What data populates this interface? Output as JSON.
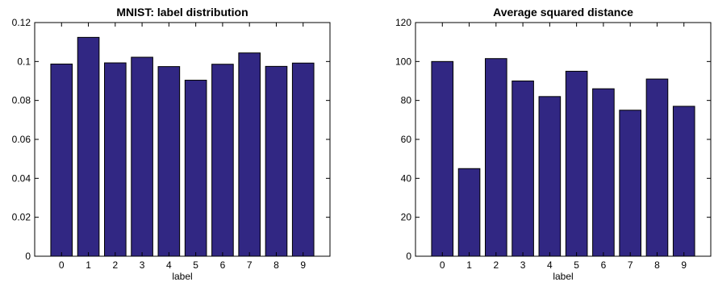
{
  "chart_data": [
    {
      "type": "bar",
      "title": "MNIST: label distribution",
      "xlabel": "label",
      "ylabel": "",
      "categories": [
        "0",
        "1",
        "2",
        "3",
        "4",
        "5",
        "6",
        "7",
        "8",
        "9"
      ],
      "values": [
        0.0987,
        0.1124,
        0.0993,
        0.1022,
        0.0974,
        0.0904,
        0.0986,
        0.1044,
        0.0975,
        0.0992
      ],
      "ylim": [
        0,
        0.12
      ],
      "yticks": [
        0,
        0.02,
        0.04,
        0.06,
        0.08,
        0.1,
        0.12
      ],
      "ytick_labels": [
        "0",
        "0.02",
        "0.04",
        "0.06",
        "0.08",
        "0.1",
        "0.12"
      ],
      "bar_color": "#312783",
      "grid": false
    },
    {
      "type": "bar",
      "title": "Average squared distance",
      "xlabel": "label",
      "ylabel": "",
      "categories": [
        "0",
        "1",
        "2",
        "3",
        "4",
        "5",
        "6",
        "7",
        "8",
        "9"
      ],
      "values": [
        100,
        45,
        101.5,
        90,
        82,
        95,
        86,
        75,
        91,
        77
      ],
      "ylim": [
        0,
        120
      ],
      "yticks": [
        0,
        20,
        40,
        60,
        80,
        100,
        120
      ],
      "ytick_labels": [
        "0",
        "20",
        "40",
        "60",
        "80",
        "100",
        "120"
      ],
      "bar_color": "#312783",
      "grid": false
    }
  ]
}
